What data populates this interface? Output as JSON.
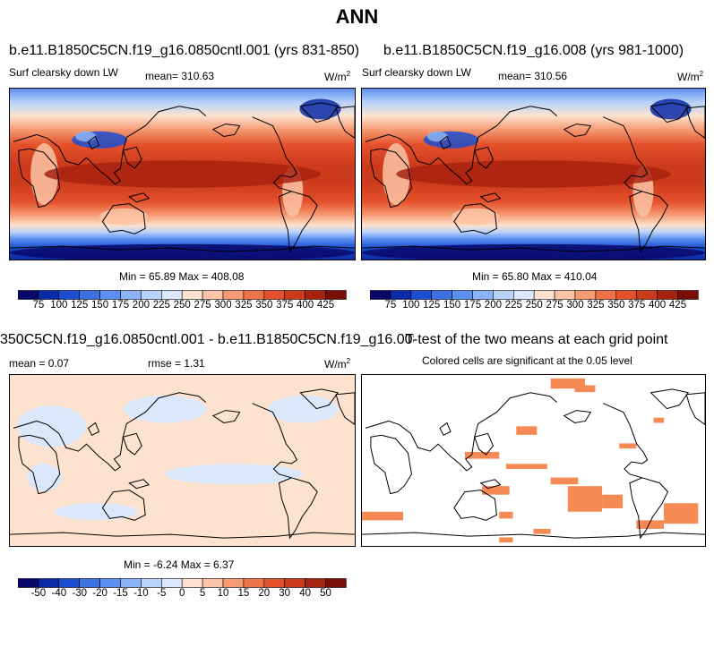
{
  "page_title": "ANN",
  "palette_blue_red": [
    "#08086b",
    "#0b2aa6",
    "#1c4fd0",
    "#3a72e2",
    "#5b8ff0",
    "#8cb3f5",
    "#b8d2fa",
    "#dbe8fc",
    "#fde2cf",
    "#fbc4a6",
    "#f59b73",
    "#ee7348",
    "#e4502a",
    "#cc3a1c",
    "#a8230f",
    "#7a0d05"
  ],
  "panels": {
    "p1": {
      "title": "b.e11.B1850C5CN.f19_g16.0850cntl.001 (yrs 831-850)",
      "variable": "Surf clearsky down LW",
      "mean": "mean= 310.63",
      "units": "W/m",
      "units_sup": "2",
      "minmax": "Min =  65.89 Max = 408.08"
    },
    "p2": {
      "title": "b.e11.B1850C5CN.f19_g16.008 (yrs 981-1000)",
      "variable": "Surf clearsky down LW",
      "mean": "mean= 310.56",
      "units": "W/m",
      "units_sup": "2",
      "minmax": "Min =  65.80 Max = 410.04"
    },
    "p3": {
      "title": "350C5CN.f19_g16.0850cntl.001 - b.e11.B1850C5CN.f19_g16.008",
      "mean": "mean =   0.07",
      "rmse": "rmse =   1.31",
      "units": "W/m",
      "units_sup": "2",
      "minmax": "Min =  -6.24 Max =   6.37"
    },
    "p4": {
      "title": "T-test of the two means at each grid point",
      "subtitle": "Colored cells are significant at the 0.05 level",
      "sig_color": "#f58a55"
    }
  },
  "colorbar_abs": {
    "labels": [
      "75",
      "100",
      "125",
      "150",
      "175",
      "200",
      "225",
      "250",
      "275",
      "300",
      "325",
      "350",
      "375",
      "400",
      "425"
    ]
  },
  "colorbar_diff": {
    "labels": [
      "-50",
      "-40",
      "-30",
      "-20",
      "-15",
      "-10",
      "-5",
      "0",
      "5",
      "10",
      "15",
      "20",
      "30",
      "40",
      "50"
    ]
  }
}
